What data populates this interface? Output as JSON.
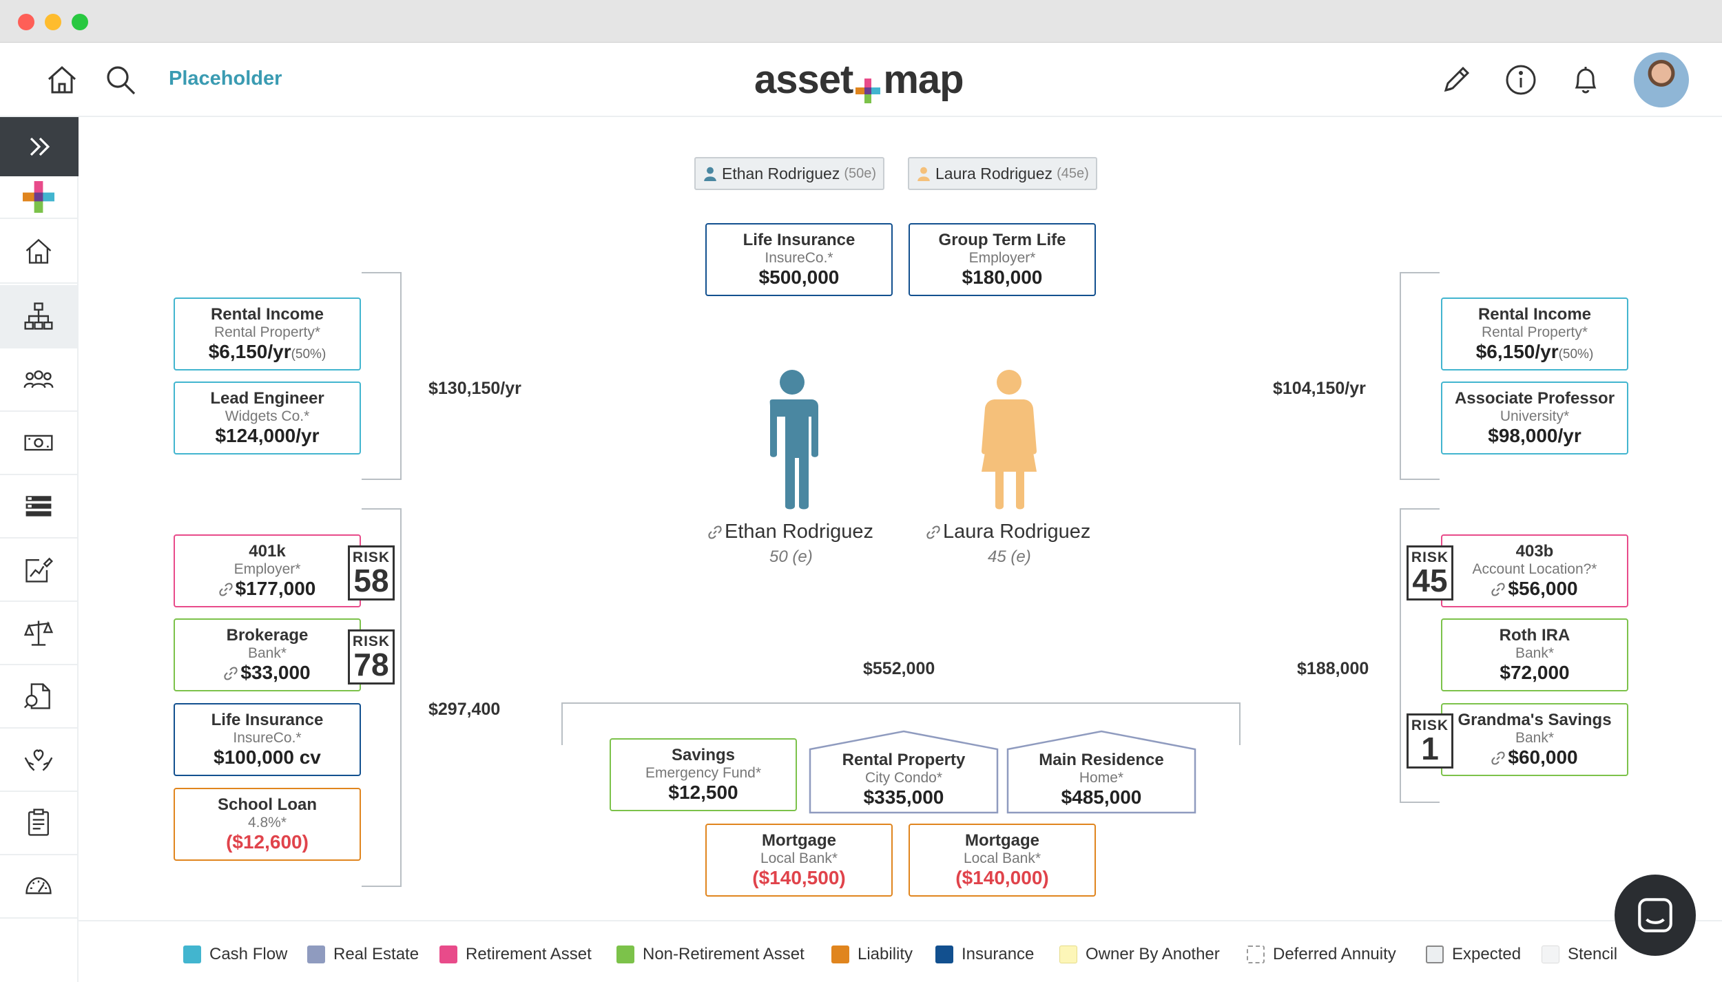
{
  "header": {
    "placeholder_label": "Placeholder",
    "logo_left": "asset",
    "logo_right": "map"
  },
  "persons": [
    {
      "name": "Ethan Rodriguez",
      "age_tag": "(50e)",
      "age_label": "50 (e)",
      "color": "#4a87a1"
    },
    {
      "name": "Laura Rodriguez",
      "age_tag": "(45e)",
      "age_label": "45 (e)",
      "color": "#f5c07a"
    }
  ],
  "insurance_top": [
    {
      "title": "Life Insurance",
      "sub": "InsureCo.*",
      "value": "$500,000"
    },
    {
      "title": "Group Term Life",
      "sub": "Employer*",
      "value": "$180,000"
    }
  ],
  "left": {
    "income_total": "$130,150/yr",
    "assets_total": "$297,400",
    "income": [
      {
        "title": "Rental Income",
        "sub": "Rental Property*",
        "value": "$6,150/yr",
        "pct": "(50%)"
      },
      {
        "title": "Lead Engineer",
        "sub": "Widgets Co.*",
        "value": "$124,000/yr"
      }
    ],
    "assets": [
      {
        "title": "401k",
        "sub": "Employer*",
        "value": "$177,000",
        "risk": "58"
      },
      {
        "title": "Brokerage",
        "sub": "Bank*",
        "value": "$33,000",
        "risk": "78"
      },
      {
        "title": "Life Insurance",
        "sub": "InsureCo.*",
        "value": "$100,000 cv"
      },
      {
        "title": "School Loan",
        "sub": "4.8%*",
        "value": "($12,600)"
      }
    ]
  },
  "right": {
    "income_total": "$104,150/yr",
    "assets_total": "$188,000",
    "income": [
      {
        "title": "Rental Income",
        "sub": "Rental Property*",
        "value": "$6,150/yr",
        "pct": "(50%)"
      },
      {
        "title": "Associate Professor",
        "sub": "University*",
        "value": "$98,000/yr"
      }
    ],
    "assets": [
      {
        "title": "403b",
        "sub": "Account Location?*",
        "value": "$56,000",
        "risk": "45"
      },
      {
        "title": "Roth IRA",
        "sub": "Bank*",
        "value": "$72,000"
      },
      {
        "title": "Grandma's Savings",
        "sub": "Bank*",
        "value": "$60,000",
        "risk": "1"
      }
    ]
  },
  "joint": {
    "total": "$552,000",
    "assets": [
      {
        "title": "Savings",
        "sub": "Emergency Fund*",
        "value": "$12,500"
      },
      {
        "title": "Rental Property",
        "sub": "City Condo*",
        "value": "$335,000"
      },
      {
        "title": "Main Residence",
        "sub": "Home*",
        "value": "$485,000"
      }
    ],
    "liabilities": [
      {
        "title": "Mortgage",
        "sub": "Local Bank*",
        "value": "($140,500)"
      },
      {
        "title": "Mortgage",
        "sub": "Local Bank*",
        "value": "($140,000)"
      }
    ]
  },
  "risk_label": "RISK",
  "legend": [
    {
      "label": "Cash Flow",
      "color": "#42b5cf"
    },
    {
      "label": "Real Estate",
      "color": "#8f9bbf"
    },
    {
      "label": "Retirement Asset",
      "color": "#e84b8a"
    },
    {
      "label": "Non-Retirement Asset",
      "color": "#7cc24a"
    },
    {
      "label": "Liability",
      "color": "#e0851e"
    },
    {
      "label": "Insurance",
      "color": "#12508f"
    },
    {
      "label": "Owner By Another",
      "color": "#fdf6b8"
    },
    {
      "label": "Deferred Annuity",
      "color": "#ffffff"
    },
    {
      "label": "Expected",
      "color": "#eceff1"
    },
    {
      "label": "Stencil",
      "color": "#f3f4f5"
    }
  ]
}
